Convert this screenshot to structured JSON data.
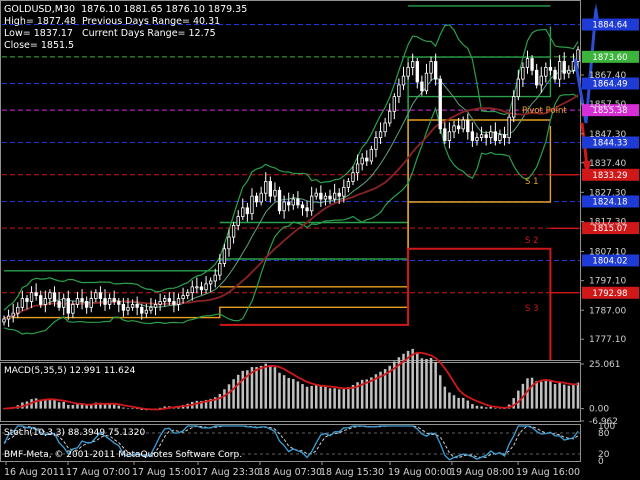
{
  "header": {
    "symbol": "GOLDUSD,M30",
    "ohlc": "1876.10 1881.65 1876.10 1879.35",
    "high": "High= 1877.48",
    "low": "Low= 1837.17",
    "close": "Close= 1851.5",
    "prev_range": "Previous Days Range= 40.31",
    "curr_range": "Current Days Range= 12.75"
  },
  "chart_data": [
    {
      "type": "candlestick",
      "panel": "main",
      "ylim": [
        1770,
        1892
      ],
      "y_ticks": [
        "1867.40",
        "1857.50",
        "1847.30",
        "1837.40",
        "1827.30",
        "1817.30",
        "1807.10",
        "1797.10",
        "1787.00",
        "1777.10"
      ],
      "x_ticks": [
        "16 Aug 2011",
        "17 Aug 07:00",
        "17 Aug 15:00",
        "17 Aug 23:30",
        "18 Aug 07:30",
        "18 Aug 15:30",
        "19 Aug 00:00",
        "19 Aug 08:00",
        "19 Aug 16:00"
      ],
      "close_series": [
        1784,
        1785,
        1786,
        1788,
        1791,
        1790,
        1793,
        1792,
        1789,
        1791,
        1793,
        1790,
        1788,
        1791,
        1786,
        1789,
        1791,
        1790,
        1788,
        1791,
        1793,
        1791,
        1789,
        1791,
        1790,
        1789,
        1787,
        1788,
        1789,
        1788,
        1786,
        1787,
        1788,
        1789,
        1790,
        1791,
        1790,
        1789,
        1791,
        1792,
        1793,
        1795,
        1795,
        1794,
        1796,
        1797,
        1799,
        1803,
        1808,
        1812,
        1816,
        1819,
        1822,
        1820,
        1826,
        1824,
        1827,
        1831,
        1826,
        1828,
        1821,
        1824,
        1823,
        1825,
        1823,
        1822,
        1821,
        1826,
        1827,
        1825,
        1826,
        1825,
        1827,
        1826,
        1829,
        1831,
        1834,
        1837,
        1839,
        1838,
        1842,
        1846,
        1848,
        1851,
        1855,
        1860,
        1864,
        1867,
        1870,
        1872,
        1865,
        1862,
        1868,
        1872,
        1866,
        1849,
        1845,
        1848,
        1850,
        1849,
        1852,
        1848,
        1845,
        1846,
        1847,
        1846,
        1848,
        1845,
        1847,
        1846,
        1853,
        1860,
        1866,
        1870,
        1873,
        1869,
        1864,
        1867,
        1870,
        1869,
        1866,
        1872,
        1868,
        1869,
        1872,
        1876
      ],
      "price_labels": [
        {
          "price": "1884.64",
          "value": 1884.64,
          "color": "#1f3bd6"
        },
        {
          "price": "1873.60",
          "value": 1873.6,
          "color": "#3cb43c"
        },
        {
          "price": "1864.49",
          "value": 1864.49,
          "color": "#1f3bd6"
        },
        {
          "price": "1855.38",
          "value": 1855.38,
          "color": "#d62fd6"
        },
        {
          "price": "1844.33",
          "value": 1844.33,
          "color": "#1f3bd6"
        },
        {
          "price": "1833.29",
          "value": 1833.29,
          "color": "#d01818"
        },
        {
          "price": "1824.18",
          "value": 1824.18,
          "color": "#1f3bd6"
        },
        {
          "price": "1815.07",
          "value": 1815.07,
          "color": "#d01818"
        },
        {
          "price": "1804.02",
          "value": 1804.02,
          "color": "#1f3bd6"
        },
        {
          "price": "1792.98",
          "value": 1792.98,
          "color": "#d01818"
        }
      ],
      "annotations": [
        "Pivot Point",
        "S 1",
        "S 2",
        "S 3"
      ]
    },
    {
      "type": "bar",
      "panel": "macd",
      "label": "MACD(5,35,5) 12.991 11.624",
      "y_ticks": [
        "25.061",
        "0.00",
        "-6.962"
      ],
      "ylim": [
        -6.962,
        25.061
      ]
    },
    {
      "type": "line",
      "panel": "stoch",
      "label": "Stoch(10,3,3) 88.3949 75.1320",
      "y_ticks": [
        "100",
        "80",
        "20",
        "0"
      ],
      "ylim": [
        0,
        100
      ]
    }
  ],
  "footer": {
    "copyright": "BMF-Meta, © 2001-2011 MetaQuotes Software Corp."
  },
  "colors": {
    "background": "#000000",
    "candle": "#ffffff",
    "ma": "#7a1f1f",
    "bands": "#2aa04a",
    "macd_hist": "#c0c0c0",
    "macd_signal": "#d01818",
    "stoch_main": "#3d9fd6",
    "stoch_signal": "#cfcfcf"
  }
}
